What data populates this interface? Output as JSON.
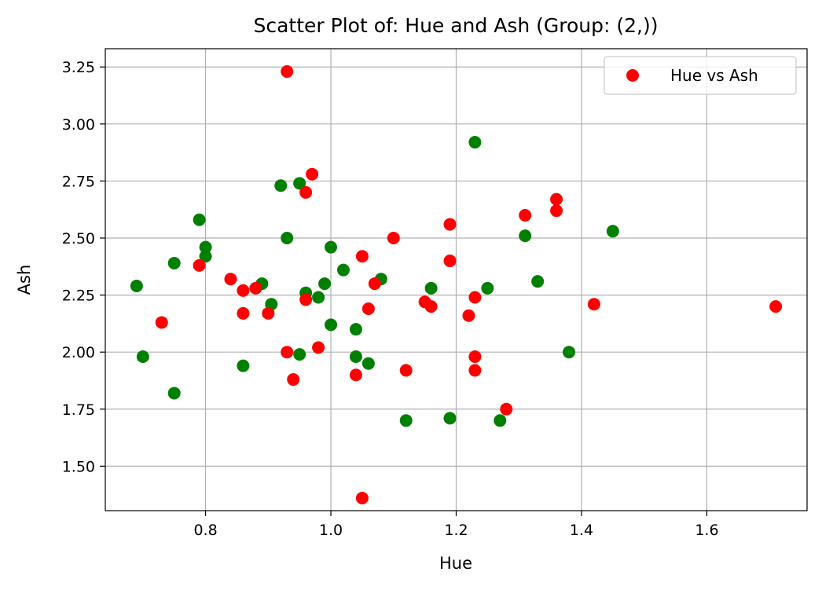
{
  "chart_data": {
    "type": "scatter",
    "title": "Scatter Plot of: Hue and Ash (Group: (2,))",
    "xlabel": "Hue",
    "ylabel": "Ash",
    "xlim": [
      0.64,
      1.76
    ],
    "ylim": [
      1.305,
      3.33
    ],
    "xticks": [
      0.8,
      1.0,
      1.2,
      1.4,
      1.6
    ],
    "xtick_labels": [
      "0.8",
      "1.0",
      "1.2",
      "1.4",
      "1.6"
    ],
    "yticks": [
      1.5,
      1.75,
      2.0,
      2.25,
      2.5,
      2.75,
      3.0,
      3.25
    ],
    "ytick_labels": [
      "1.50",
      "1.75",
      "2.00",
      "2.25",
      "2.50",
      "2.75",
      "3.00",
      "3.25"
    ],
    "grid": true,
    "legend_position": "top-right",
    "legend": [
      {
        "label": "Hue vs Ash",
        "color": "#ff0000"
      }
    ],
    "series": [
      {
        "color": "#008000",
        "points": [
          [
            0.69,
            2.29
          ],
          [
            0.7,
            1.98
          ],
          [
            0.75,
            2.39
          ],
          [
            0.75,
            1.82
          ],
          [
            0.79,
            2.58
          ],
          [
            0.8,
            2.46
          ],
          [
            0.8,
            2.42
          ],
          [
            0.86,
            1.94
          ],
          [
            0.89,
            2.3
          ],
          [
            0.905,
            2.21
          ],
          [
            0.92,
            2.73
          ],
          [
            0.93,
            2.5
          ],
          [
            0.95,
            2.74
          ],
          [
            0.95,
            1.99
          ],
          [
            0.96,
            2.26
          ],
          [
            0.98,
            2.24
          ],
          [
            0.99,
            2.3
          ],
          [
            1.0,
            2.46
          ],
          [
            1.0,
            2.12
          ],
          [
            1.02,
            2.36
          ],
          [
            1.04,
            2.1
          ],
          [
            1.04,
            1.98
          ],
          [
            1.06,
            1.95
          ],
          [
            1.08,
            2.32
          ],
          [
            1.12,
            1.7
          ],
          [
            1.16,
            2.28
          ],
          [
            1.19,
            1.71
          ],
          [
            1.23,
            2.92
          ],
          [
            1.25,
            2.28
          ],
          [
            1.27,
            1.7
          ],
          [
            1.31,
            2.51
          ],
          [
            1.33,
            2.31
          ],
          [
            1.38,
            2.0
          ],
          [
            1.45,
            2.53
          ]
        ]
      },
      {
        "name": "Hue vs Ash",
        "color": "#ff0000",
        "points": [
          [
            0.73,
            2.13
          ],
          [
            0.79,
            2.38
          ],
          [
            0.84,
            2.32
          ],
          [
            0.86,
            2.27
          ],
          [
            0.86,
            2.17
          ],
          [
            0.88,
            2.28
          ],
          [
            0.9,
            2.17
          ],
          [
            0.93,
            3.23
          ],
          [
            0.93,
            2.0
          ],
          [
            0.94,
            1.88
          ],
          [
            0.96,
            2.7
          ],
          [
            0.96,
            2.23
          ],
          [
            0.97,
            2.78
          ],
          [
            0.98,
            2.02
          ],
          [
            1.04,
            1.9
          ],
          [
            1.05,
            2.42
          ],
          [
            1.05,
            1.36
          ],
          [
            1.06,
            2.19
          ],
          [
            1.07,
            2.3
          ],
          [
            1.1,
            2.5
          ],
          [
            1.12,
            1.92
          ],
          [
            1.15,
            2.22
          ],
          [
            1.16,
            2.2
          ],
          [
            1.19,
            2.56
          ],
          [
            1.19,
            2.4
          ],
          [
            1.22,
            2.16
          ],
          [
            1.23,
            2.24
          ],
          [
            1.23,
            1.98
          ],
          [
            1.23,
            1.92
          ],
          [
            1.28,
            1.75
          ],
          [
            1.31,
            2.6
          ],
          [
            1.36,
            2.67
          ],
          [
            1.36,
            2.62
          ],
          [
            1.42,
            2.21
          ],
          [
            1.71,
            2.2
          ]
        ]
      }
    ]
  }
}
